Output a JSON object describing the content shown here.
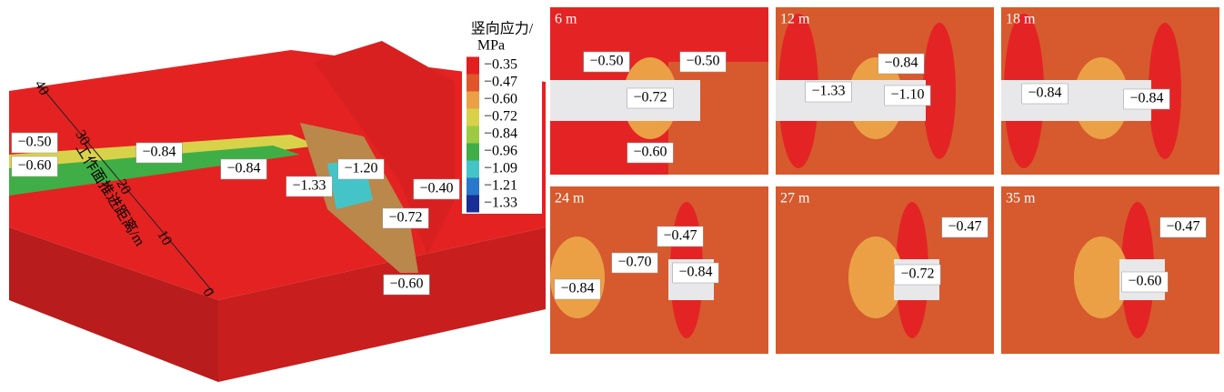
{
  "figure": {
    "colorbar": {
      "title": "竖向应力/",
      "unit": "MPa",
      "ticks": [
        "−0.35",
        "−0.47",
        "−0.60",
        "−0.72",
        "−0.84",
        "−0.96",
        "−1.09",
        "−1.21",
        "−1.33"
      ],
      "colors": [
        "#e41e1e",
        "#e0562a",
        "#eba046",
        "#d8d24a",
        "#9ccb42",
        "#3fae46",
        "#45c4c8",
        "#2a78cc",
        "#1a2f96"
      ]
    },
    "axis_3d": {
      "label": "工作面推进距离/m",
      "ticks": [
        "40",
        "30",
        "20",
        "10",
        "0"
      ]
    },
    "main_labels": [
      "−0.50",
      "−0.60",
      "−0.84",
      "−0.84",
      "−1.33",
      "−1.20",
      "−0.40",
      "−0.72",
      "−0.60"
    ],
    "panels": [
      {
        "title": "6 m",
        "labels": [
          "−0.50",
          "−0.50",
          "−0.72",
          "−0.60"
        ]
      },
      {
        "title": "12 m",
        "labels": [
          "−0.84",
          "−1.33",
          "−1.10"
        ]
      },
      {
        "title": "18 m",
        "labels": [
          "−0.84",
          "−0.84"
        ]
      },
      {
        "title": "24 m",
        "labels": [
          "−0.47",
          "−0.70",
          "−0.84",
          "−0.84"
        ]
      },
      {
        "title": "27 m",
        "labels": [
          "−0.47",
          "−0.72"
        ]
      },
      {
        "title": "35 m",
        "labels": [
          "−0.47",
          "−0.60"
        ]
      }
    ]
  }
}
